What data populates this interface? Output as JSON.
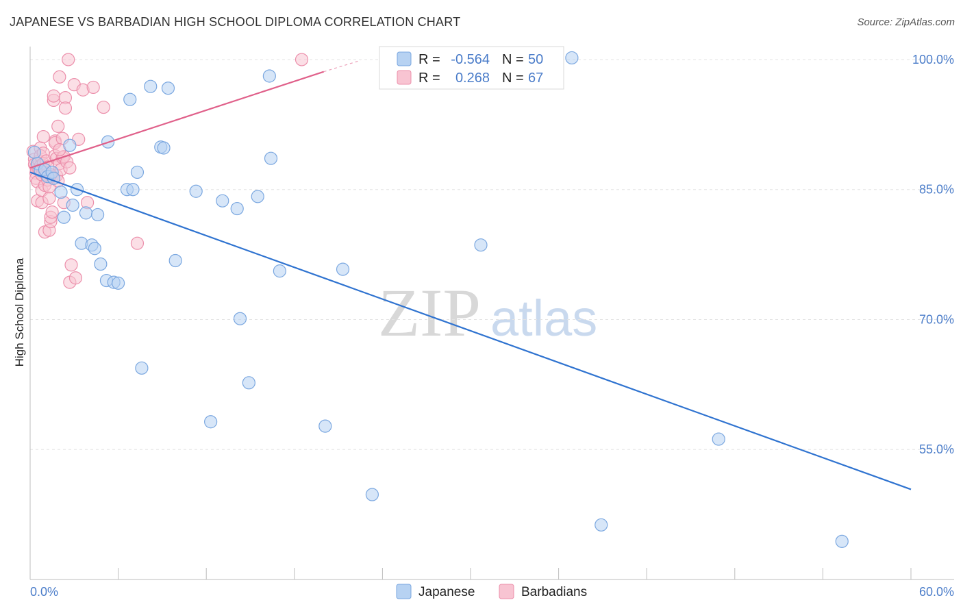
{
  "header": {
    "title": "JAPANESE VS BARBADIAN HIGH SCHOOL DIPLOMA CORRELATION CHART",
    "source": "Source: ZipAtlas.com"
  },
  "watermark": {
    "zip": "ZIP",
    "atlas": "atlas"
  },
  "colors": {
    "japanese_fill": "#b7d2f2",
    "japanese_stroke": "#7aa7e0",
    "japanese_line": "#2f73d0",
    "barbadian_fill": "#f8c4d2",
    "barbadian_stroke": "#ec8fab",
    "barbadian_line": "#e0608a",
    "tick_label": "#4a7cc9",
    "grid": "#e3e3e3"
  },
  "legend": {
    "rows": [
      {
        "r_label": "R =",
        "r_value": "-0.564",
        "n_label": "N =",
        "n_value": "50"
      },
      {
        "r_label": "R =",
        "r_value": "0.268",
        "n_label": "N =",
        "n_value": "67"
      }
    ]
  },
  "bottom_legend": {
    "japanese": "Japanese",
    "barbadians": "Barbadians"
  },
  "chart_data": {
    "type": "scatter",
    "title": "JAPANESE VS BARBADIAN HIGH SCHOOL DIPLOMA CORRELATION CHART",
    "xlabel": "",
    "ylabel": "High School Diploma",
    "xlim": [
      0,
      60
    ],
    "ylim": [
      40,
      101.5
    ],
    "x_tick_labels": [
      "0.0%",
      "60.0%"
    ],
    "y_ticks": [
      100,
      85,
      70,
      55
    ],
    "y_tick_labels": [
      "100.0%",
      "85.0%",
      "70.0%",
      "55.0%"
    ],
    "grid": true,
    "legend_position": "top-center",
    "series": [
      {
        "name": "Japanese",
        "R": -0.564,
        "N": 50,
        "trend": {
          "x0": 0,
          "y0": 87.0,
          "x1": 60,
          "y1": 50.4
        },
        "points": [
          [
            0.3,
            89.3
          ],
          [
            0.5,
            88.0
          ],
          [
            0.7,
            87.2
          ],
          [
            1.0,
            87.3
          ],
          [
            1.2,
            86.5
          ],
          [
            1.5,
            87.0
          ],
          [
            1.6,
            86.3
          ],
          [
            2.1,
            84.7
          ],
          [
            2.3,
            81.8
          ],
          [
            2.7,
            90.1
          ],
          [
            2.9,
            83.2
          ],
          [
            3.2,
            85.0
          ],
          [
            3.5,
            78.8
          ],
          [
            3.8,
            82.3
          ],
          [
            4.2,
            78.6
          ],
          [
            4.4,
            78.2
          ],
          [
            4.6,
            82.1
          ],
          [
            4.8,
            76.4
          ],
          [
            5.2,
            74.5
          ],
          [
            5.3,
            90.5
          ],
          [
            5.7,
            74.3
          ],
          [
            6.0,
            74.2
          ],
          [
            6.6,
            85.0
          ],
          [
            6.8,
            95.4
          ],
          [
            7.0,
            85.0
          ],
          [
            7.3,
            87.0
          ],
          [
            7.6,
            64.4
          ],
          [
            8.2,
            96.9
          ],
          [
            8.9,
            89.9
          ],
          [
            9.1,
            89.8
          ],
          [
            9.4,
            96.7
          ],
          [
            9.9,
            76.8
          ],
          [
            11.3,
            84.8
          ],
          [
            12.3,
            58.2
          ],
          [
            13.1,
            83.7
          ],
          [
            14.1,
            82.8
          ],
          [
            14.3,
            70.1
          ],
          [
            14.9,
            62.7
          ],
          [
            15.5,
            84.2
          ],
          [
            16.3,
            98.1
          ],
          [
            16.4,
            88.6
          ],
          [
            17.0,
            75.6
          ],
          [
            20.1,
            57.7
          ],
          [
            21.3,
            75.8
          ],
          [
            23.3,
            49.8
          ],
          [
            30.7,
            78.6
          ],
          [
            36.9,
            100.2
          ],
          [
            46.9,
            56.2
          ],
          [
            38.9,
            46.3
          ],
          [
            55.3,
            44.4
          ]
        ]
      },
      {
        "name": "Barbadians",
        "R": 0.268,
        "N": 67,
        "trend": {
          "x0": 0,
          "y0": 87.5,
          "x1": 20.0,
          "y1": 98.6,
          "dash_to_x": 22.5,
          "dash_to_y": 99.9
        },
        "points": [
          [
            0.2,
            89.4
          ],
          [
            0.3,
            88.5
          ],
          [
            0.3,
            87.9
          ],
          [
            0.4,
            87.6
          ],
          [
            0.4,
            86.9
          ],
          [
            0.4,
            86.3
          ],
          [
            0.5,
            85.9
          ],
          [
            0.5,
            83.7
          ],
          [
            0.6,
            88.3
          ],
          [
            0.6,
            87.3
          ],
          [
            0.7,
            89.8
          ],
          [
            0.7,
            88.9
          ],
          [
            0.7,
            87.7
          ],
          [
            0.8,
            86.7
          ],
          [
            0.8,
            84.9
          ],
          [
            0.8,
            83.5
          ],
          [
            0.9,
            91.1
          ],
          [
            0.9,
            89.2
          ],
          [
            0.9,
            88.0
          ],
          [
            1.0,
            87.0
          ],
          [
            1.0,
            85.5
          ],
          [
            1.0,
            80.1
          ],
          [
            1.1,
            86.7
          ],
          [
            1.1,
            88.3
          ],
          [
            1.2,
            87.6
          ],
          [
            1.2,
            86.1
          ],
          [
            1.3,
            85.3
          ],
          [
            1.3,
            84.0
          ],
          [
            1.3,
            80.3
          ],
          [
            1.4,
            81.3
          ],
          [
            1.4,
            81.8
          ],
          [
            1.5,
            82.4
          ],
          [
            1.5,
            86.5
          ],
          [
            1.6,
            95.3
          ],
          [
            1.6,
            95.8
          ],
          [
            1.7,
            90.6
          ],
          [
            1.7,
            90.4
          ],
          [
            1.7,
            88.9
          ],
          [
            1.8,
            88.6
          ],
          [
            1.8,
            86.6
          ],
          [
            1.9,
            92.3
          ],
          [
            1.9,
            86.0
          ],
          [
            2.0,
            98.0
          ],
          [
            2.0,
            88.0
          ],
          [
            2.1,
            87.3
          ],
          [
            2.2,
            90.9
          ],
          [
            2.2,
            88.7
          ],
          [
            2.3,
            88.8
          ],
          [
            2.3,
            83.5
          ],
          [
            2.4,
            95.6
          ],
          [
            2.4,
            94.4
          ],
          [
            2.5,
            88.2
          ],
          [
            2.6,
            100.0
          ],
          [
            2.7,
            87.5
          ],
          [
            2.8,
            76.3
          ],
          [
            2.7,
            74.3
          ],
          [
            3.0,
            97.1
          ],
          [
            3.1,
            74.8
          ],
          [
            3.3,
            90.8
          ],
          [
            3.6,
            96.5
          ],
          [
            3.9,
            83.5
          ],
          [
            4.3,
            96.8
          ],
          [
            5.0,
            94.5
          ],
          [
            7.3,
            78.8
          ],
          [
            18.5,
            100.0
          ],
          [
            1.4,
            86.7
          ],
          [
            2.0,
            89.6
          ]
        ]
      }
    ]
  }
}
